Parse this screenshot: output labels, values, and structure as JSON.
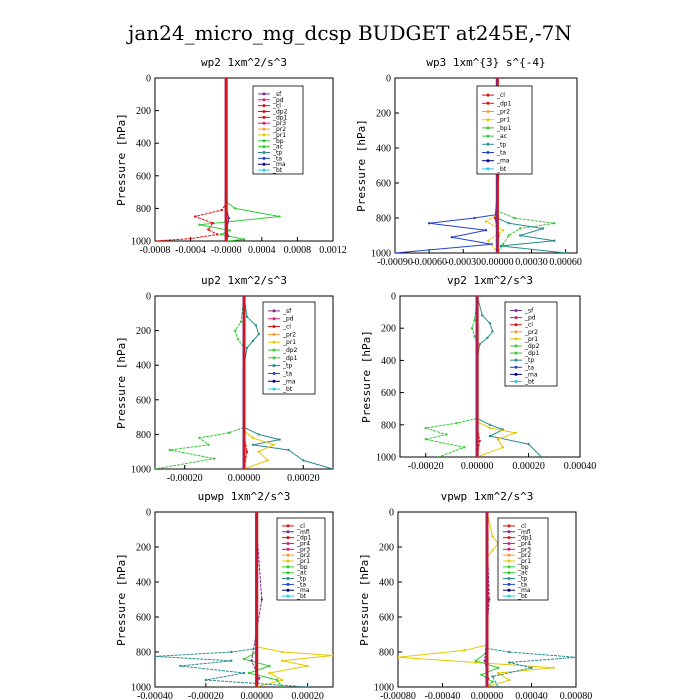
{
  "suptitle": "jan24_micro_mg_dcsp  BUDGET at245E,-7N",
  "colors": {
    "red": "#dd1111",
    "purple": "#7a2a8a",
    "magenta": "#cc2277",
    "orange": "#ff9a2a",
    "yellow": "#e6c800",
    "green": "#33cc33",
    "teal": "#2a8c8c",
    "blue": "#2244cc",
    "navy": "#000080",
    "cyan": "#22d0e0",
    "black": "#000000"
  },
  "chart_data": [
    {
      "type": "line",
      "title": "wp2  1xm^2/s^3",
      "ylabel": "Pressure [hPa]",
      "ylim": [
        1000,
        0
      ],
      "yticks": [
        "0",
        "200",
        "400",
        "600",
        "800",
        "1000"
      ],
      "xlim": [
        -0.0008,
        0.0012
      ],
      "xticks": [
        -0.0008,
        -0.0004,
        0.0,
        0.0004,
        0.0008,
        0.0012
      ],
      "xtick_labels": [
        "-0.0008",
        "-0.0004",
        "-0.0000",
        "0.0004",
        "0.0008",
        "0.0012"
      ],
      "legend": [
        "_sf",
        "_pd",
        "_cl",
        "_dp2",
        "_dp1",
        "_pr3",
        "_pr2",
        "_pr1",
        "_bp",
        "_ac",
        "_tp",
        "_ta",
        "_ma",
        "_bt"
      ],
      "legend_colors": [
        "purple",
        "magenta",
        "red",
        "red",
        "red",
        "magenta",
        "orange",
        "yellow",
        "green",
        "green",
        "teal",
        "blue",
        "navy",
        "cyan"
      ],
      "series": [
        {
          "color": "green",
          "x": [
            0,
            0,
            0.0001,
            0.0006,
            -0.0003,
            4e-05,
            -6e-05,
            0.0002,
            0
          ],
          "p": [
            0,
            760,
            800,
            850,
            900,
            935,
            960,
            990,
            1000
          ]
        },
        {
          "color": "red",
          "x": [
            0,
            0,
            -5e-05,
            -0.00035,
            -0.00015,
            -0.0002,
            -0.0001,
            -0.0004,
            -0.0008
          ],
          "p": [
            0,
            770,
            810,
            850,
            890,
            930,
            960,
            985,
            1000
          ]
        },
        {
          "color": "purple",
          "x": [
            0,
            0,
            3e-05,
            1e-05,
            2e-05,
            0
          ],
          "p": [
            0,
            800,
            860,
            920,
            970,
            1000
          ]
        }
      ]
    },
    {
      "type": "line",
      "title": "wp3  1xm^{3} s^{-4}",
      "ylabel": "Pressure [hPa]",
      "ylim": [
        1000,
        0
      ],
      "yticks": [
        "0",
        "200",
        "400",
        "600",
        "800",
        "1000"
      ],
      "xlim": [
        -0.0009,
        0.0007
      ],
      "xticks": [
        -0.0009,
        -0.0006,
        -0.0003,
        0.0,
        0.0003,
        0.0006
      ],
      "xtick_labels": [
        "-0.00090",
        "-0.00060",
        "-0.00030",
        "0.00000",
        "0.00030",
        "0.00060"
      ],
      "legend": [
        "_cl",
        "_dp1",
        "_pr2",
        "_pr1",
        "_bp1",
        "_ac",
        "_tp",
        "_ta",
        "_ma",
        "_bt"
      ],
      "legend_colors": [
        "red",
        "red",
        "orange",
        "yellow",
        "green",
        "green",
        "teal",
        "blue",
        "navy",
        "cyan"
      ],
      "series": [
        {
          "color": "blue",
          "x": [
            0,
            0,
            -0.0002,
            -0.0006,
            -0.0001,
            -0.0004,
            -5e-05,
            -0.0009
          ],
          "p": [
            0,
            780,
            800,
            830,
            870,
            910,
            950,
            1000
          ]
        },
        {
          "color": "green",
          "x": [
            0,
            0,
            0.00015,
            0.0005,
            0.0002,
            0.0001,
            5e-05,
            0
          ],
          "p": [
            0,
            760,
            800,
            830,
            860,
            900,
            950,
            1000
          ]
        },
        {
          "color": "teal",
          "x": [
            0,
            0,
            0.0001,
            0.0004,
            0.0002,
            0.0005,
            3e-05,
            0.0006
          ],
          "p": [
            0,
            800,
            830,
            860,
            900,
            930,
            960,
            1000
          ]
        },
        {
          "color": "yellow",
          "x": [
            0,
            0,
            -0.0001,
            5e-05,
            -8e-05,
            0
          ],
          "p": [
            0,
            780,
            820,
            870,
            930,
            1000
          ]
        },
        {
          "color": "red",
          "x": [
            0,
            0,
            2e-05,
            -2e-05,
            1e-05,
            0
          ],
          "p": [
            0,
            100,
            500,
            800,
            900,
            1000
          ]
        }
      ]
    },
    {
      "type": "line",
      "title": "up2  1xm^2/s^3",
      "ylabel": "Pressure [hPa]",
      "ylim": [
        1000,
        0
      ],
      "yticks": [
        "0",
        "200",
        "400",
        "600",
        "800",
        "1000"
      ],
      "xlim": [
        -0.0003,
        0.0003
      ],
      "xticks": [
        -0.0002,
        0.0,
        0.0002
      ],
      "xtick_labels": [
        "-0.00020",
        "0.00000",
        "0.00020"
      ],
      "legend": [
        "_sf",
        "_pd",
        "_cl",
        "_pr2",
        "_pr1",
        "_dp2",
        "_dp1",
        "_tp",
        "_ta",
        "_ma",
        "_bt"
      ],
      "legend_colors": [
        "purple",
        "magenta",
        "red",
        "orange",
        "yellow",
        "green",
        "green",
        "teal",
        "blue",
        "navy",
        "cyan"
      ],
      "series": [
        {
          "color": "teal",
          "x": [
            0,
            1e-05,
            4e-05,
            5e-05,
            3e-05,
            1e-05,
            0,
            0,
            5e-05,
            0.00012,
            3e-05,
            0.00015,
            0.0002,
            0.0003
          ],
          "p": [
            0,
            120,
            170,
            220,
            260,
            300,
            400,
            760,
            800,
            830,
            860,
            890,
            950,
            1000
          ]
        },
        {
          "color": "green",
          "x": [
            0,
            -1e-05,
            -3e-05,
            -2e-05,
            0,
            0,
            -5e-05,
            -0.00015,
            -0.00012,
            -0.00025,
            -0.0001,
            -0.0003
          ],
          "p": [
            0,
            150,
            200,
            250,
            300,
            760,
            790,
            820,
            860,
            890,
            940,
            1000
          ]
        },
        {
          "color": "yellow",
          "x": [
            0,
            0,
            3e-05,
            0.0001,
            5e-05,
            8e-05,
            0
          ],
          "p": [
            0,
            780,
            820,
            860,
            900,
            950,
            1000
          ]
        },
        {
          "color": "red",
          "x": [
            0,
            0,
            1e-05,
            0
          ],
          "p": [
            0,
            800,
            900,
            1000
          ]
        }
      ]
    },
    {
      "type": "line",
      "title": "vp2  1xm^2/s^3",
      "ylabel": "Pressure [hPa]",
      "ylim": [
        1000,
        0
      ],
      "yticks": [
        "0",
        "200",
        "400",
        "600",
        "800",
        "1000"
      ],
      "xlim": [
        -0.0003,
        0.0004
      ],
      "xticks": [
        -0.0002,
        0.0,
        0.0002,
        0.0004
      ],
      "xtick_labels": [
        "-0.00020",
        "0.00000",
        "0.00020",
        "0.00040"
      ],
      "legend": [
        "_sf",
        "_pd",
        "_cl",
        "_pr2",
        "_pr1",
        "_dp2",
        "_dp1",
        "_tp",
        "_ta",
        "_ma",
        "_bt"
      ],
      "legend_colors": [
        "purple",
        "magenta",
        "red",
        "orange",
        "yellow",
        "green",
        "green",
        "teal",
        "blue",
        "navy",
        "cyan"
      ],
      "series": [
        {
          "color": "teal",
          "x": [
            0,
            2e-05,
            5e-05,
            6e-05,
            4e-05,
            1e-05,
            0,
            0,
            5e-05,
            0.0001,
            5e-05,
            0.0002,
            0.00025
          ],
          "p": [
            0,
            120,
            170,
            220,
            260,
            300,
            400,
            760,
            800,
            830,
            870,
            920,
            1000
          ]
        },
        {
          "color": "green",
          "x": [
            0,
            -1e-05,
            -2e-05,
            -1e-05,
            0,
            0,
            -8e-05,
            -0.0002,
            -0.00012,
            -0.0002,
            -5e-05,
            -0.00015
          ],
          "p": [
            0,
            150,
            200,
            250,
            300,
            760,
            790,
            820,
            860,
            890,
            940,
            1000
          ]
        },
        {
          "color": "yellow",
          "x": [
            0,
            0,
            5e-05,
            0.00015,
            8e-05,
            0.0001,
            0
          ],
          "p": [
            0,
            780,
            820,
            850,
            890,
            940,
            1000
          ]
        },
        {
          "color": "red",
          "x": [
            0,
            0,
            1e-05,
            0
          ],
          "p": [
            0,
            800,
            900,
            1000
          ]
        }
      ]
    },
    {
      "type": "line",
      "title": "upwp  1xm^2/s^3",
      "ylabel": "Pressure [hPa]",
      "ylim": [
        1000,
        0
      ],
      "yticks": [
        "0",
        "200",
        "400",
        "600",
        "800",
        "1000"
      ],
      "xlim": [
        -0.0004,
        0.0003
      ],
      "xticks": [
        -0.0004,
        -0.0002,
        0.0,
        0.0002
      ],
      "xtick_labels": [
        "-0.00040",
        "-0.00020",
        "0.00000",
        "0.00020"
      ],
      "legend": [
        "_cl",
        "_mfl",
        "_dp1",
        "_pr4",
        "_pr3",
        "_pr2",
        "_pr1",
        "_bp",
        "_ac",
        "_tp",
        "_ta",
        "_ma",
        "_bt"
      ],
      "legend_colors": [
        "red",
        "purple",
        "red",
        "magenta",
        "magenta",
        "orange",
        "yellow",
        "green",
        "green",
        "teal",
        "blue",
        "navy",
        "cyan"
      ],
      "series": [
        {
          "color": "yellow",
          "x": [
            0,
            0,
            0.0001,
            0.0003,
            0.0001,
            0.0002,
            5e-05,
            0.0001,
            0
          ],
          "p": [
            0,
            770,
            800,
            820,
            850,
            880,
            920,
            960,
            1000
          ]
        },
        {
          "color": "teal",
          "x": [
            0,
            0,
            -0.0001,
            -0.0004,
            -0.0001,
            -0.0003,
            -5e-05,
            -0.0002,
            0.0002
          ],
          "p": [
            0,
            780,
            800,
            825,
            850,
            880,
            920,
            960,
            1000
          ]
        },
        {
          "color": "green",
          "x": [
            0,
            0,
            -5e-05,
            5e-05,
            -3e-05,
            8e-05,
            0.0001
          ],
          "p": [
            0,
            800,
            840,
            880,
            920,
            960,
            1000
          ]
        },
        {
          "color": "purple",
          "x": [
            0,
            0,
            2e-05,
            -2e-05,
            1e-05,
            0
          ],
          "p": [
            0,
            100,
            500,
            850,
            950,
            1000
          ]
        }
      ]
    },
    {
      "type": "line",
      "title": "vpwp  1xm^2/s^3",
      "ylabel": "Pressure [hPa]",
      "ylim": [
        1000,
        0
      ],
      "yticks": [
        "0",
        "200",
        "400",
        "600",
        "800",
        "1000"
      ],
      "xlim": [
        -0.0008,
        0.0008
      ],
      "xticks": [
        -0.0008,
        -0.0004,
        0.0,
        0.0004,
        0.0008
      ],
      "xtick_labels": [
        "-0.00080",
        "-0.00040",
        "0.00000",
        "0.00040",
        "0.00080"
      ],
      "legend": [
        "_cl",
        "_mfl",
        "_dp1",
        "_pr4",
        "_pr3",
        "_pr2",
        "_pr1",
        "_bp",
        "_ac",
        "_tp",
        "_ta",
        "_ma",
        "_bt"
      ],
      "legend_colors": [
        "red",
        "purple",
        "red",
        "magenta",
        "magenta",
        "orange",
        "yellow",
        "green",
        "green",
        "teal",
        "blue",
        "navy",
        "cyan"
      ],
      "series": [
        {
          "color": "yellow",
          "x": [
            0,
            5e-05,
            0.0001,
            5e-05,
            0,
            0,
            -0.0002,
            -0.0008,
            -0.0001,
            0.0006,
            0.0001,
            0.0002,
            0
          ],
          "p": [
            0,
            140,
            180,
            220,
            260,
            760,
            790,
            830,
            860,
            890,
            920,
            960,
            1000
          ]
        },
        {
          "color": "teal",
          "x": [
            0,
            0,
            0.0002,
            0.0008,
            0.0002,
            0.0004,
            5e-05,
            0.0001
          ],
          "p": [
            0,
            780,
            800,
            830,
            860,
            890,
            940,
            1000
          ]
        },
        {
          "color": "green",
          "x": [
            0,
            0,
            -0.0001,
            0.0001,
            -5e-05,
            5e-05,
            0
          ],
          "p": [
            0,
            800,
            850,
            890,
            930,
            970,
            1000
          ]
        },
        {
          "color": "purple",
          "x": [
            0,
            0,
            2e-05,
            -2e-05,
            1e-05,
            0
          ],
          "p": [
            0,
            100,
            500,
            850,
            950,
            1000
          ]
        }
      ]
    }
  ]
}
